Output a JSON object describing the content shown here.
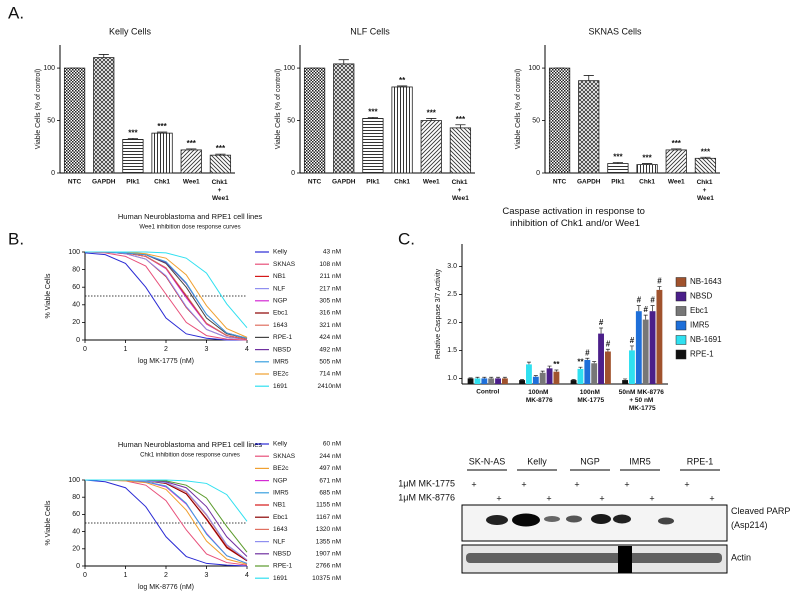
{
  "panel_labels": [
    "A.",
    "B.",
    "C."
  ],
  "chart_data": [
    {
      "type": "bar",
      "title": "Kelly Cells",
      "y_label": "Viable Cells (% of control)",
      "categories": [
        "NTC",
        "GAPDH",
        "Plk1",
        "Chk1",
        "Wee1",
        "Chk1 + Wee1"
      ],
      "values": [
        100,
        110,
        32,
        38,
        22,
        17
      ],
      "errors": [
        0,
        3,
        1,
        1,
        1,
        1
      ],
      "annotations": [
        null,
        null,
        "***",
        "***",
        "***",
        "***"
      ],
      "ylim": [
        0,
        122
      ],
      "yticks": [
        0,
        50,
        100
      ]
    },
    {
      "type": "bar",
      "title": "NLF Cells",
      "y_label": "Viable Cells (% of control)",
      "categories": [
        "NTC",
        "GAPDH",
        "Plk1",
        "Chk1",
        "Wee1",
        "Chk1 + Wee1"
      ],
      "values": [
        100,
        104,
        52,
        82,
        50,
        43
      ],
      "errors": [
        0,
        4,
        1,
        1,
        2,
        3
      ],
      "annotations": [
        null,
        null,
        "***",
        "**",
        "***",
        "***"
      ],
      "ylim": [
        0,
        122
      ],
      "yticks": [
        0,
        50,
        100
      ]
    },
    {
      "type": "bar",
      "title": "SKNAS Cells",
      "y_label": "Viable Cells (% of control)",
      "categories": [
        "NTC",
        "GAPDH",
        "Plk1",
        "Chk1",
        "Wee1",
        "Chk1 + Wee1"
      ],
      "values": [
        100,
        88,
        9,
        8,
        22,
        14
      ],
      "errors": [
        0,
        5,
        1,
        1,
        1,
        1
      ],
      "annotations": [
        null,
        null,
        "***",
        "***",
        "***",
        "***"
      ],
      "ylim": [
        0,
        122
      ],
      "yticks": [
        0,
        50,
        100
      ]
    },
    {
      "type": "line",
      "title": "Human Neuroblastoma and RPE1 cell lines",
      "subtitle": "Wee1 inhibition dose response curves",
      "x_label": "log MK-1775 (nM)",
      "y_label": "% Viable Cells",
      "x": [
        0,
        0.5,
        1,
        1.5,
        2,
        2.5,
        3,
        3.5,
        4
      ],
      "series": [
        {
          "name": "Kelly",
          "ic50": "43 nM",
          "color": "#2a2ad4",
          "values": [
            99,
            97,
            87,
            60,
            25,
            7,
            2,
            0,
            0
          ]
        },
        {
          "name": "SKNAS",
          "ic50": "108 nM",
          "color": "#e8507a",
          "values": [
            100,
            99,
            95,
            84,
            52,
            20,
            5,
            1,
            0
          ]
        },
        {
          "name": "NB1",
          "ic50": "211 nM",
          "color": "#d41818",
          "values": [
            100,
            100,
            98,
            92,
            72,
            37,
            12,
            3,
            1
          ]
        },
        {
          "name": "NLF",
          "ic50": "217 nM",
          "color": "#8f8ff0",
          "values": [
            100,
            100,
            98,
            92,
            73,
            38,
            12,
            3,
            1
          ]
        },
        {
          "name": "NGP",
          "ic50": "305 nM",
          "color": "#d42ad4",
          "values": [
            100,
            100,
            99,
            95,
            81,
            48,
            18,
            5,
            1
          ]
        },
        {
          "name": "Ebc1",
          "ic50": "316 nM",
          "color": "#8b0000",
          "values": [
            100,
            100,
            99,
            95,
            82,
            50,
            19,
            5,
            1
          ]
        },
        {
          "name": "1643",
          "ic50": "321 nM",
          "color": "#e07060",
          "values": [
            100,
            100,
            99,
            95,
            82,
            51,
            19,
            5,
            1
          ]
        },
        {
          "name": "RPE-1",
          "ic50": "424 nM",
          "color": "#444444",
          "values": [
            100,
            100,
            99,
            97,
            87,
            60,
            25,
            7,
            2
          ]
        },
        {
          "name": "NBSD",
          "ic50": "492 nM",
          "color": "#7030a0",
          "values": [
            100,
            100,
            99,
            97,
            88,
            64,
            29,
            8,
            2
          ]
        },
        {
          "name": "IMR5",
          "ic50": "505 nM",
          "color": "#3aa0e0",
          "values": [
            100,
            100,
            99,
            97,
            89,
            65,
            29,
            8,
            2
          ]
        },
        {
          "name": "BE2c",
          "ic50": "714 nM",
          "color": "#f0a030",
          "values": [
            100,
            100,
            100,
            98,
            93,
            74,
            39,
            13,
            3
          ]
        },
        {
          "name": "1691",
          "ic50": "2410nM",
          "color": "#30e0f0",
          "values": [
            100,
            100,
            100,
            100,
            99,
            93,
            76,
            41,
            14
          ]
        }
      ],
      "reference_line": 50,
      "xlim": [
        0,
        4
      ],
      "ylim": [
        0,
        100
      ],
      "xticks": [
        0,
        1,
        2,
        3,
        4
      ],
      "yticks": [
        0,
        20,
        40,
        60,
        80,
        100
      ]
    },
    {
      "type": "line",
      "title": "Human Neuroblastoma and RPE1 cell lines",
      "subtitle": "Chk1 inhibition dose response curves",
      "x_label": "log MK-8776 (nM)",
      "y_label": "% Viable Cells",
      "x": [
        0,
        0.5,
        1,
        1.5,
        2,
        2.5,
        3,
        3.5,
        4
      ],
      "series": [
        {
          "name": "Kelly",
          "ic50": "60 nM",
          "color": "#2a2ad4",
          "values": [
            100,
            98,
            91,
            69,
            34,
            11,
            3,
            1,
            0
          ]
        },
        {
          "name": "SKNAS",
          "ic50": "244 nM",
          "color": "#e8507a",
          "values": [
            100,
            100,
            99,
            94,
            76,
            42,
            14,
            4,
            1
          ]
        },
        {
          "name": "BE2c",
          "ic50": "497 nM",
          "color": "#f0a030",
          "values": [
            100,
            100,
            99,
            97,
            89,
            65,
            29,
            8,
            2
          ]
        },
        {
          "name": "NGP",
          "ic50": "671 nM",
          "color": "#d42ad4",
          "values": [
            100,
            100,
            100,
            98,
            92,
            72,
            38,
            12,
            3
          ]
        },
        {
          "name": "IMR5",
          "ic50": "685 nM",
          "color": "#3aa0e0",
          "values": [
            100,
            100,
            100,
            98,
            93,
            73,
            37,
            12,
            3
          ]
        },
        {
          "name": "NB1",
          "ic50": "1155 nM",
          "color": "#d41818",
          "values": [
            100,
            100,
            100,
            99,
            96,
            84,
            54,
            21,
            6
          ]
        },
        {
          "name": "Ebc1",
          "ic50": "1167 nM",
          "color": "#8b0000",
          "values": [
            100,
            100,
            100,
            99,
            96,
            84,
            55,
            22,
            6
          ]
        },
        {
          "name": "1643",
          "ic50": "1320 nM",
          "color": "#e07060",
          "values": [
            100,
            100,
            100,
            99,
            97,
            86,
            59,
            24,
            7
          ]
        },
        {
          "name": "NLF",
          "ic50": "1355 nM",
          "color": "#8f8ff0",
          "values": [
            100,
            100,
            100,
            99,
            97,
            87,
            60,
            25,
            7
          ]
        },
        {
          "name": "NBSD",
          "ic50": "1907 nM",
          "color": "#7030a0",
          "values": [
            100,
            100,
            100,
            100,
            98,
            91,
            69,
            34,
            11
          ]
        },
        {
          "name": "RPE-1",
          "ic50": "2766 nM",
          "color": "#5a9a2a",
          "values": [
            100,
            100,
            100,
            100,
            99,
            94,
            79,
            46,
            16
          ]
        },
        {
          "name": "1691",
          "ic50": "10375 nM",
          "color": "#30e0f0",
          "values": [
            100,
            100,
            100,
            100,
            100,
            99,
            96,
            83,
            52
          ]
        }
      ],
      "reference_line": 50,
      "xlim": [
        0,
        4
      ],
      "ylim": [
        0,
        100
      ],
      "xticks": [
        0,
        1,
        2,
        3,
        4
      ],
      "yticks": [
        0,
        20,
        40,
        60,
        80,
        100
      ]
    },
    {
      "type": "grouped_bar",
      "title": "Caspase activation in response to inhibition of Chk1 and/or Wee1",
      "y_label": "Relative Caspase 3/7 Activity",
      "categories": [
        "Control",
        "100nM MK-8776",
        "100nM MK-1775",
        "50nM MK-8776 + 50 nM MK-1775"
      ],
      "series": [
        {
          "name": "NB-1643",
          "color": "#a0522d",
          "values": [
            1.0,
            1.12,
            1.48,
            2.58
          ],
          "errors": [
            0.02,
            0.03,
            0.04,
            0.06
          ],
          "annotations": [
            null,
            "**",
            "#",
            "#"
          ]
        },
        {
          "name": "NBSD",
          "color": "#4b1f8a",
          "values": [
            1.0,
            1.18,
            1.8,
            2.2
          ],
          "errors": [
            0.02,
            0.04,
            0.1,
            0.1
          ],
          "annotations": [
            null,
            null,
            "#",
            "#"
          ]
        },
        {
          "name": "Ebc1",
          "color": "#777777",
          "values": [
            1.0,
            1.1,
            1.27,
            2.05
          ],
          "errors": [
            0.02,
            0.03,
            0.03,
            0.08
          ],
          "annotations": [
            null,
            null,
            null,
            "#"
          ]
        },
        {
          "name": "IMR5",
          "color": "#1e6fd9",
          "values": [
            1.0,
            1.03,
            1.33,
            2.2
          ],
          "errors": [
            0.02,
            0.02,
            0.03,
            0.1
          ],
          "annotations": [
            null,
            null,
            "#",
            "#"
          ]
        },
        {
          "name": "NB-1691",
          "color": "#2fe0f0",
          "values": [
            1.0,
            1.25,
            1.17,
            1.5
          ],
          "errors": [
            0.02,
            0.04,
            0.03,
            0.08
          ],
          "annotations": [
            null,
            null,
            "**",
            "#"
          ]
        },
        {
          "name": "RPE-1",
          "color": "#111111",
          "values": [
            1.0,
            0.97,
            0.97,
            0.97
          ],
          "errors": [
            0.01,
            0.01,
            0.01,
            0.02
          ],
          "annotations": [
            null,
            null,
            null,
            null
          ]
        }
      ],
      "ylim": [
        0.9,
        3.4
      ],
      "yticks": [
        {
          "value": 1,
          "label": "1.0"
        },
        1.5,
        {
          "value": 2,
          "label": "2.0"
        },
        2.5,
        {
          "value": 3,
          "label": "3.0"
        }
      ]
    }
  ],
  "blot": {
    "cell_lines": [
      "SK-N-AS",
      "Kelly",
      "NGP",
      "IMR5",
      "RPE-1"
    ],
    "treatments": [
      "1μM MK-1775",
      "1μM MK-8776"
    ],
    "treatment_mark": "+",
    "bands": [
      "Cleaved PARP (Asp214)",
      "Actin"
    ]
  }
}
